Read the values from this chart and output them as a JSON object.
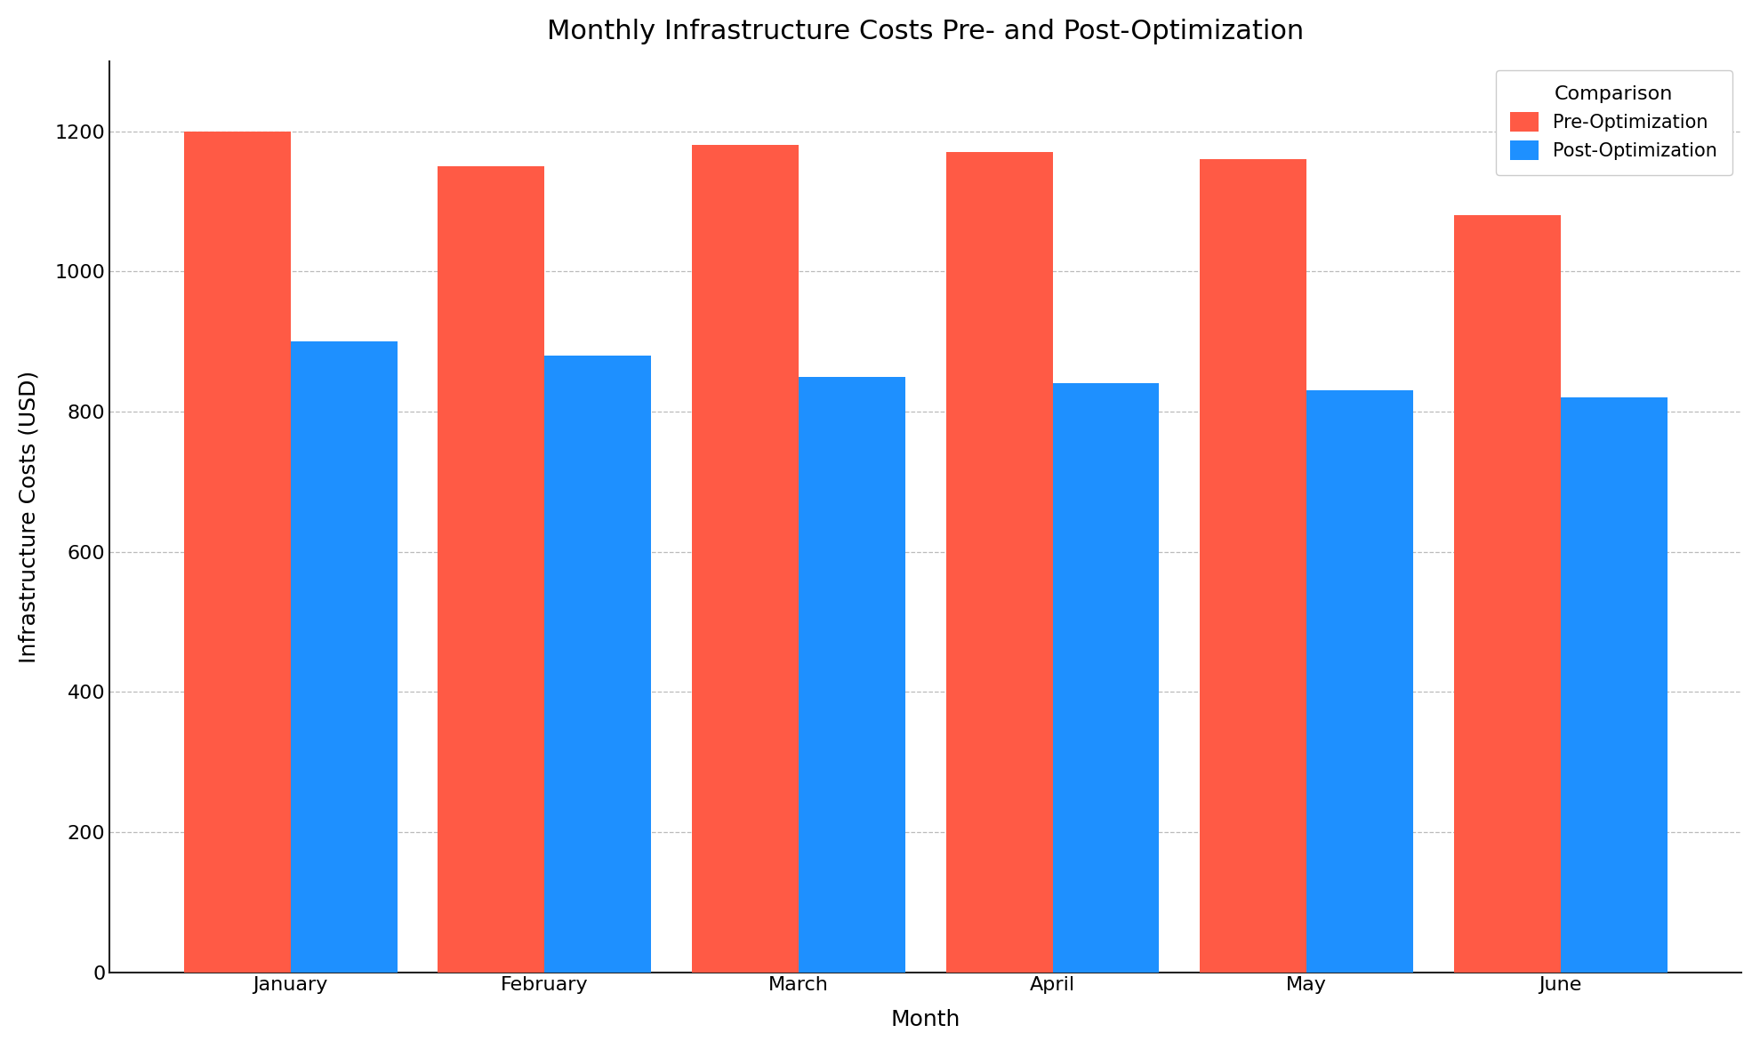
{
  "title": "Monthly Infrastructure Costs Pre- and Post-Optimization",
  "xlabel": "Month",
  "ylabel": "Infrastructure Costs (USD)",
  "legend_title": "Comparison",
  "categories": [
    "January",
    "February",
    "March",
    "April",
    "May",
    "June"
  ],
  "pre_optimization": [
    1200,
    1150,
    1180,
    1170,
    1160,
    1080
  ],
  "post_optimization": [
    900,
    880,
    850,
    840,
    830,
    820
  ],
  "pre_color": "#FF5A45",
  "post_color": "#1E90FF",
  "background_color": "#FFFFFF",
  "ylim": [
    0,
    1300
  ],
  "yticks": [
    0,
    200,
    400,
    600,
    800,
    1000,
    1200
  ],
  "bar_width": 0.42,
  "title_fontsize": 22,
  "label_fontsize": 18,
  "tick_fontsize": 16,
  "legend_fontsize": 15
}
